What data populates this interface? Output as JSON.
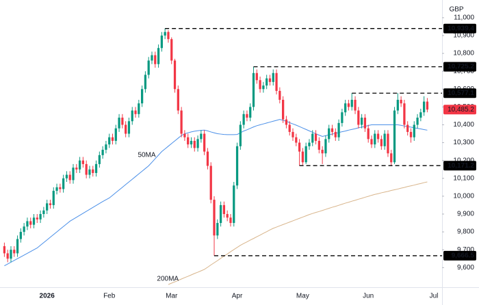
{
  "chart_data": {
    "type": "candlestick",
    "currency": "GBP",
    "categories": [
      null,
      null,
      null,
      null,
      null,
      null,
      null,
      null,
      null,
      null,
      null,
      null,
      null,
      "2026",
      null,
      null,
      null,
      null,
      null,
      null,
      null,
      null,
      null,
      null,
      null,
      null,
      null,
      null,
      null,
      null,
      null,
      null,
      "Feb",
      null,
      null,
      null,
      null,
      null,
      null,
      null,
      null,
      null,
      null,
      null,
      null,
      null,
      null,
      null,
      null,
      null,
      null,
      "Mar",
      null,
      null,
      null,
      null,
      null,
      null,
      null,
      null,
      null,
      null,
      null,
      null,
      null,
      null,
      null,
      null,
      null,
      null,
      null,
      "Apr",
      null,
      null,
      null,
      null,
      null,
      null,
      null,
      null,
      null,
      null,
      null,
      null,
      null,
      null,
      null,
      null,
      null,
      null,
      null,
      "May",
      null,
      null,
      null,
      null,
      null,
      null,
      null,
      null,
      null,
      null,
      null,
      null,
      null,
      null,
      null,
      null,
      null,
      null,
      null,
      "Jun",
      null,
      null,
      null,
      null,
      null,
      null,
      null,
      null,
      null,
      null,
      null,
      null,
      null,
      null,
      null,
      null,
      null,
      null,
      null,
      "Jul",
      null,
      null
    ],
    "open": [
      9720,
      9680,
      9650,
      9700,
      9680,
      9760,
      9800,
      9830,
      9860,
      9840,
      9880,
      9870,
      9900,
      9920,
      9960,
      9950,
      10030,
      10050,
      10040,
      10100,
      10120,
      10090,
      10160,
      10150,
      10200,
      10180,
      10120,
      10150,
      10130,
      10180,
      10230,
      10260,
      10290,
      10330,
      10310,
      10380,
      10440,
      10400,
      10350,
      10420,
      10480,
      10460,
      10520,
      10600,
      10680,
      10760,
      10790,
      10740,
      10830,
      10900,
      10920,
      10880,
      10760,
      10600,
      10480,
      10350,
      10330,
      10290,
      10310,
      10270,
      10320,
      10350,
      10250,
      10170,
      9980,
      9780,
      9850,
      9950,
      9900,
      9880,
      9850,
      10060,
      10280,
      10400,
      10460,
      10440,
      10500,
      10690,
      10650,
      10600,
      10620,
      10660,
      10640,
      10690,
      10590,
      10540,
      10430,
      10400,
      10360,
      10330,
      10300,
      10250,
      10190,
      10280,
      10300,
      10350,
      10310,
      10260,
      10240,
      10320,
      10380,
      10360,
      10330,
      10410,
      10470,
      10520,
      10500,
      10540,
      10480,
      10400,
      10440,
      10380,
      10320,
      10290,
      10350,
      10320,
      10280,
      10350,
      10240,
      10190,
      10480,
      10540,
      10520,
      10400,
      10360,
      10330,
      10400,
      10440,
      10470,
      10530,
      null,
      null,
      null,
      null
    ],
    "high": [
      9740,
      9700,
      9720,
      9720,
      9780,
      9820,
      9850,
      9880,
      9880,
      9900,
      9900,
      9920,
      9940,
      9980,
      9980,
      10050,
      10070,
      10070,
      10120,
      10140,
      10140,
      10180,
      10180,
      10220,
      10220,
      10200,
      10170,
      10170,
      10200,
      10250,
      10280,
      10310,
      10350,
      10350,
      10400,
      10460,
      10460,
      10420,
      10440,
      10500,
      10500,
      10540,
      10620,
      10700,
      10780,
      10810,
      10810,
      10850,
      10920,
      10939.4,
      10930,
      10890,
      10770,
      10620,
      10500,
      10370,
      10350,
      10330,
      10330,
      10340,
      10370,
      10370,
      10270,
      10190,
      10000,
      9870,
      9970,
      9970,
      9920,
      9900,
      10080,
      10300,
      10420,
      10480,
      10480,
      10520,
      10725.2,
      10710,
      10670,
      10640,
      10680,
      10680,
      10710,
      10710,
      10610,
      10560,
      10450,
      10420,
      10380,
      10350,
      10320,
      10270,
      10300,
      10320,
      10370,
      10370,
      10330,
      10280,
      10340,
      10400,
      10400,
      10380,
      10430,
      10490,
      10540,
      10540,
      10577.1,
      10560,
      10500,
      10460,
      10460,
      10400,
      10340,
      10370,
      10370,
      10340,
      10370,
      10370,
      10260,
      10500,
      10577.1,
      10560,
      10540,
      10420,
      10380,
      10420,
      10460,
      10490,
      10560,
      10550,
      null,
      null,
      null,
      null
    ],
    "low": [
      9660,
      9630,
      9630,
      9660,
      9660,
      9740,
      9780,
      9810,
      9820,
      9820,
      9850,
      9850,
      9880,
      9900,
      9930,
      9930,
      10010,
      10020,
      10020,
      10080,
      10070,
      10070,
      10130,
      10130,
      10160,
      10100,
      10100,
      10110,
      10110,
      10160,
      10210,
      10240,
      10270,
      10290,
      10290,
      10360,
      10380,
      10330,
      10330,
      10400,
      10440,
      10440,
      10500,
      10580,
      10660,
      10740,
      10720,
      10720,
      10810,
      10880,
      10860,
      10740,
      10580,
      10460,
      10330,
      10310,
      10270,
      10270,
      10250,
      10250,
      10300,
      10230,
      10150,
      9960,
      9666.5,
      9760,
      9830,
      9880,
      9860,
      9830,
      9830,
      10040,
      10260,
      10380,
      10420,
      10420,
      10480,
      10630,
      10580,
      10580,
      10600,
      10620,
      10620,
      10570,
      10520,
      10410,
      10380,
      10340,
      10310,
      10280,
      10171.2,
      10175,
      10180,
      10260,
      10280,
      10290,
      10240,
      10180,
      10220,
      10300,
      10340,
      10310,
      10310,
      10390,
      10450,
      10480,
      10480,
      10460,
      10380,
      10380,
      10360,
      10300,
      10270,
      10270,
      10300,
      10260,
      10260,
      10220,
      10171.2,
      10180,
      10460,
      10500,
      10380,
      10340,
      10300,
      10310,
      10380,
      10420,
      10450,
      10470,
      null,
      null,
      null,
      null
    ],
    "close": [
      9680,
      9650,
      9700,
      9680,
      9760,
      9800,
      9830,
      9860,
      9840,
      9880,
      9870,
      9900,
      9920,
      9960,
      9950,
      10030,
      10050,
      10040,
      10100,
      10120,
      10090,
      10160,
      10150,
      10200,
      10180,
      10120,
      10150,
      10130,
      10180,
      10230,
      10260,
      10290,
      10330,
      10310,
      10380,
      10440,
      10400,
      10350,
      10420,
      10480,
      10460,
      10520,
      10600,
      10680,
      10760,
      10790,
      10740,
      10830,
      10900,
      10920,
      10880,
      10760,
      10600,
      10480,
      10350,
      10330,
      10290,
      10310,
      10270,
      10320,
      10350,
      10250,
      10170,
      9980,
      9780,
      9850,
      9950,
      9900,
      9880,
      9850,
      10060,
      10280,
      10400,
      10460,
      10440,
      10500,
      10690,
      10650,
      10600,
      10620,
      10660,
      10640,
      10690,
      10590,
      10540,
      10430,
      10400,
      10360,
      10330,
      10300,
      10250,
      10190,
      10280,
      10300,
      10350,
      10310,
      10260,
      10240,
      10320,
      10380,
      10360,
      10330,
      10410,
      10470,
      10520,
      10500,
      10540,
      10480,
      10400,
      10440,
      10380,
      10320,
      10290,
      10350,
      10320,
      10280,
      10350,
      10240,
      10190,
      10480,
      10540,
      10520,
      10400,
      10360,
      10330,
      10400,
      10440,
      10470,
      10530,
      10485.2,
      null,
      null,
      null,
      null
    ],
    "up_color": "#089981",
    "down_color": "#f23645",
    "series": [
      {
        "name": "50MA",
        "color": "#4a8fe8",
        "values": [
          9610,
          9620,
          9630,
          9640,
          9650,
          9660,
          9670,
          9680,
          9690,
          9700,
          9710,
          9725,
          9740,
          9755,
          9770,
          9785,
          9800,
          9815,
          9830,
          9845,
          9860,
          9871,
          9882,
          9893,
          9904,
          9915,
          9926,
          9937,
          9948,
          9959,
          9970,
          9980,
          9990,
          10005,
          10020,
          10035,
          10050,
          10065,
          10080,
          10095,
          10110,
          10125,
          10140,
          10155,
          10170,
          10190,
          10210,
          10230,
          10250,
          10265,
          10280,
          10295,
          10310,
          10325,
          10340,
          10350,
          10355,
          10360,
          10364,
          10367,
          10369,
          10370,
          10366,
          10360,
          10355,
          10350,
          10348,
          10346,
          10345,
          10345,
          10345,
          10346,
          10355,
          10365,
          10372,
          10380,
          10388,
          10395,
          10400,
          10405,
          10410,
          10415,
          10420,
          10425,
          10430,
          10425,
          10420,
          10412,
          10405,
          10398,
          10390,
          10382,
          10374,
          10366,
          10358,
          10350,
          10342,
          10335,
          10339,
          10344,
          10348,
          10352,
          10357,
          10361,
          10365,
          10370,
          10374,
          10378,
          10383,
          10387,
          10391,
          10396,
          10400,
          10400,
          10400,
          10400,
          10400,
          10400,
          10400,
          10400,
          10400,
          10397,
          10393,
          10390,
          10387,
          10383,
          10380,
          10377,
          10373,
          10370,
          null,
          null,
          null,
          null
        ]
      },
      {
        "name": "200MA",
        "color": "#d8b48a",
        "values": [
          null,
          null,
          null,
          null,
          null,
          null,
          null,
          null,
          null,
          null,
          null,
          null,
          null,
          null,
          null,
          null,
          null,
          null,
          null,
          null,
          null,
          null,
          null,
          null,
          null,
          null,
          null,
          null,
          null,
          null,
          null,
          null,
          null,
          null,
          null,
          null,
          null,
          null,
          null,
          null,
          null,
          null,
          null,
          null,
          null,
          null,
          null,
          null,
          null,
          null,
          9505,
          9513,
          9520,
          9528,
          9536,
          9544,
          9551,
          9559,
          9567,
          9574,
          9582,
          9590,
          9602,
          9615,
          9627,
          9639,
          9652,
          9664,
          9676,
          9689,
          9701,
          9713,
          9725,
          9735,
          9744,
          9754,
          9763,
          9773,
          9782,
          9792,
          9801,
          9811,
          9820,
          9827,
          9834,
          9841,
          9848,
          9855,
          9862,
          9869,
          9876,
          9883,
          9890,
          9897,
          9903,
          9909,
          9914,
          9920,
          9926,
          9932,
          9938,
          9943,
          9949,
          9955,
          9961,
          9966,
          9972,
          9977,
          9983,
          9988,
          9994,
          9999,
          10005,
          10010,
          10014,
          10019,
          10023,
          10027,
          10032,
          10036,
          10040,
          10045,
          10049,
          10054,
          10058,
          10062,
          10067,
          10071,
          10076,
          10080,
          null,
          null,
          null,
          null
        ]
      }
    ],
    "ylim": [
      9490,
      11080
    ],
    "yticks": [
      {
        "value": 9600,
        "label": "9,600"
      },
      {
        "value": 9700,
        "label": "9,700"
      },
      {
        "value": 9800,
        "label": "9,800"
      },
      {
        "value": 9900,
        "label": "9,900"
      },
      {
        "value": 10000,
        "label": "10,000"
      },
      {
        "value": 10100,
        "label": "10,100"
      },
      {
        "value": 10200,
        "label": "10,200"
      },
      {
        "value": 10300,
        "label": "10,300"
      },
      {
        "value": 10400,
        "label": "10,400"
      },
      {
        "value": 10500,
        "label": "10,500"
      },
      {
        "value": 10600,
        "label": "10,600"
      },
      {
        "value": 10700,
        "label": "10,700"
      },
      {
        "value": 10800,
        "label": "10,800"
      },
      {
        "value": 10900,
        "label": "10,900"
      },
      {
        "value": 11000,
        "label": "11,000"
      }
    ],
    "levels": [
      {
        "value": 10939.4,
        "label": "10,939.4"
      },
      {
        "value": 10725.2,
        "label": "10,725.2"
      },
      {
        "value": 10577.1,
        "label": "10,577.1"
      },
      {
        "value": 10171.2,
        "label": "10,171.2"
      },
      {
        "value": 9666.5,
        "label": "9,666.5"
      }
    ],
    "last_price": {
      "value": 10485.2,
      "label": "10,485.2",
      "color": "#f23645"
    }
  }
}
